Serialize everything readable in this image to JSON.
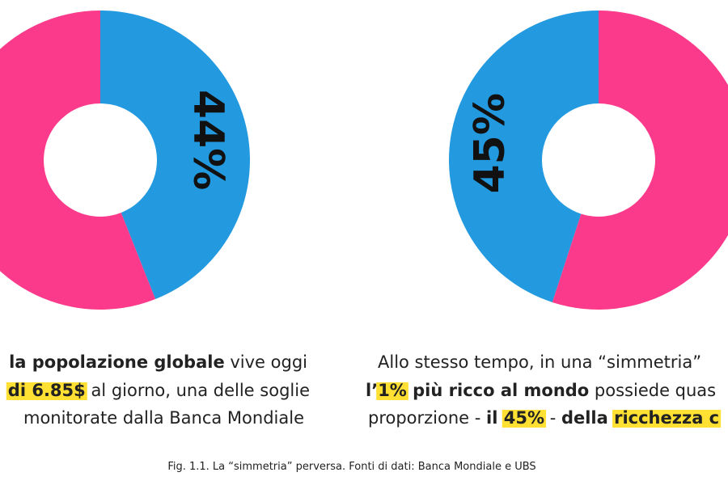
{
  "chart_data": [
    {
      "type": "pie",
      "values": [
        44,
        56
      ],
      "value_labels": [
        "44%",
        null
      ],
      "colors": [
        "#2399e0",
        "#fb3a8b"
      ],
      "clockwise": true
    },
    {
      "type": "pie",
      "values": [
        45,
        55
      ],
      "value_labels": [
        "45%",
        null
      ],
      "colors": [
        "#2399e0",
        "#fb3a8b"
      ],
      "clockwise": false
    }
  ],
  "texts": {
    "left": [
      [
        "la popolazione globale",
        " vive oggi"
      ],
      [
        "di 6.85$",
        " al giorno, una delle soglie"
      ],
      [
        "monitorate dalla Banca Mondiale"
      ]
    ],
    "right": [
      [
        "Allo stesso tempo, in una “simmetria”"
      ],
      [
        "l’",
        "1%",
        " più ricco al mondo",
        " possiede quas"
      ],
      [
        "proporzione - ",
        "il ",
        "45%",
        " - ",
        "della ",
        "ricchezza c"
      ]
    ],
    "caption": "Fig. 1.1. La “simmetria” perversa. Fonti di dati: Banca Mondiale e UBS"
  }
}
